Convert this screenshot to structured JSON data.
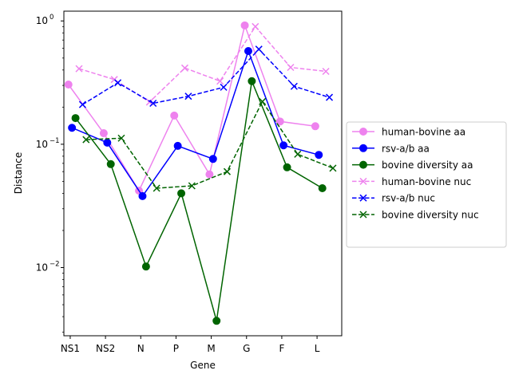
{
  "chart_data": {
    "type": "line",
    "title": "",
    "xlabel": "Gene",
    "ylabel": "Distance",
    "yscale": "log",
    "ylim": [
      0.0028,
      1.2
    ],
    "categories": [
      "NS1",
      "NS2",
      "N",
      "P",
      "M",
      "G",
      "F",
      "L"
    ],
    "yticks": [
      {
        "value": 0.01,
        "base": "10",
        "exp": "−2"
      },
      {
        "value": 0.1,
        "base": "10",
        "exp": "−1"
      },
      {
        "value": 1,
        "base": "10",
        "exp": "0"
      }
    ],
    "grid": false,
    "legend_position": "right",
    "series": [
      {
        "name": "human-bovine aa",
        "color": "#ee82ee",
        "linestyle": "solid",
        "marker": "circle",
        "offset": -0.05,
        "values": [
          0.305,
          0.123,
          0.042,
          0.171,
          0.057,
          0.92,
          0.153,
          0.14
        ]
      },
      {
        "name": "rsv-a/b aa",
        "color": "#0000ff",
        "linestyle": "solid",
        "marker": "circle",
        "offset": 0.05,
        "values": [
          0.136,
          0.103,
          0.038,
          0.097,
          0.076,
          0.57,
          0.098,
          0.082
        ]
      },
      {
        "name": "bovine diversity aa",
        "color": "#006400",
        "linestyle": "solid",
        "marker": "circle",
        "offset": 0.15,
        "values": [
          0.163,
          0.069,
          0.0102,
          0.04,
          0.0037,
          0.325,
          0.065,
          0.044
        ]
      },
      {
        "name": "human-bovine nuc",
        "color": "#ee82ee",
        "linestyle": "dashed",
        "marker": "x",
        "offset": 0.25,
        "values": [
          0.41,
          0.335,
          0.22,
          0.415,
          0.325,
          0.9,
          0.42,
          0.39
        ]
      },
      {
        "name": "rsv-a/b nuc",
        "color": "#0000ff",
        "linestyle": "dashed",
        "marker": "x",
        "offset": 0.35,
        "values": [
          0.21,
          0.315,
          0.215,
          0.245,
          0.29,
          0.59,
          0.295,
          0.24
        ]
      },
      {
        "name": "bovine diversity nuc",
        "color": "#006400",
        "linestyle": "dashed",
        "marker": "x",
        "offset": 0.45,
        "values": [
          0.109,
          0.112,
          0.044,
          0.046,
          0.06,
          0.222,
          0.083,
          0.064
        ]
      }
    ]
  }
}
